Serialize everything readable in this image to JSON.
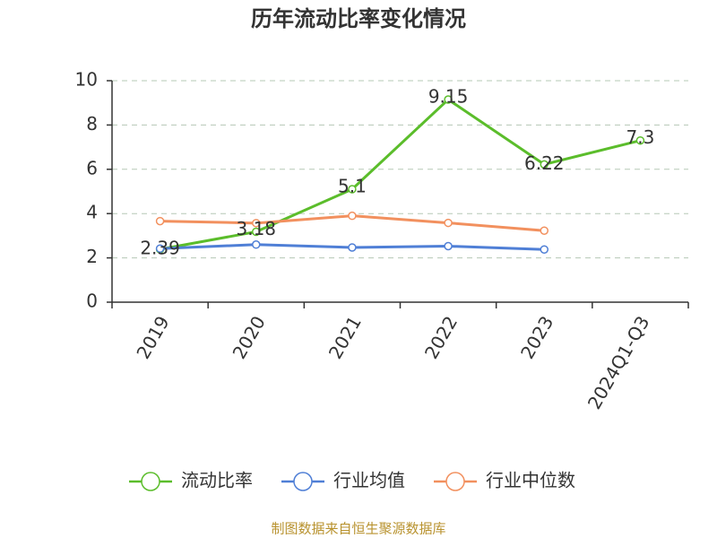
{
  "chart_data": {
    "type": "line",
    "title": "历年流动比率变化情况",
    "categories": [
      "2019",
      "2020",
      "2021",
      "2022",
      "2023",
      "2024Q1-Q3"
    ],
    "series": [
      {
        "name": "流动比率",
        "color": "#5bbd2b",
        "values": [
          2.39,
          3.18,
          5.1,
          9.15,
          6.22,
          7.3
        ]
      },
      {
        "name": "行业均值",
        "color": "#4f7fd6",
        "values": [
          2.42,
          2.6,
          2.47,
          2.53,
          2.38,
          null
        ]
      },
      {
        "name": "行业中位数",
        "color": "#f2905e",
        "values": [
          3.66,
          3.57,
          3.9,
          3.58,
          3.23,
          null
        ]
      }
    ],
    "ylim": [
      0,
      10
    ],
    "yticks": [
      0,
      2,
      4,
      6,
      8,
      10
    ],
    "grid": true,
    "legend": "bottom",
    "source": "制图数据来自恒生聚源数据库"
  }
}
